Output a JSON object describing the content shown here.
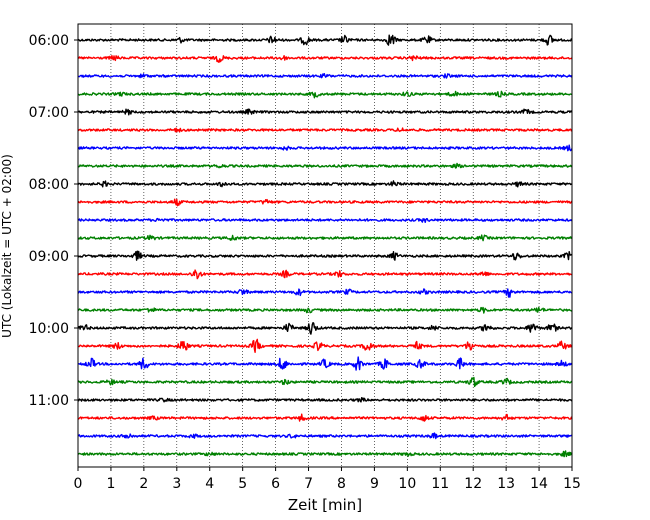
{
  "chart_data": {
    "type": "line",
    "title": "",
    "xlabel": "Zeit  [min]",
    "ylabel": "UTC (Lokalzeit = UTC + 02:00)",
    "xlim": [
      0,
      15
    ],
    "x_ticks": [
      "0",
      "1",
      "2",
      "3",
      "4",
      "5",
      "6",
      "7",
      "8",
      "9",
      "10",
      "11",
      "12",
      "13",
      "14",
      "15"
    ],
    "y_tick_labels": [
      "06:00",
      "07:00",
      "08:00",
      "09:00",
      "10:00",
      "11:00"
    ],
    "grid": "vertical-dotted",
    "trace_interval_min": 15,
    "colors": [
      "#000000",
      "#ff0000",
      "#0000ff",
      "#008000"
    ],
    "series": [
      {
        "time": "06:00",
        "color": "#000000",
        "bursts": [
          [
            5.9,
            0.5
          ],
          [
            6.9,
            0.6
          ],
          [
            8.1,
            0.5
          ],
          [
            9.5,
            0.9
          ],
          [
            10.6,
            0.5
          ],
          [
            14.3,
            0.7
          ],
          [
            3.1,
            0.3
          ]
        ]
      },
      {
        "time": "06:15",
        "color": "#ff0000",
        "bursts": [
          [
            4.3,
            0.5
          ],
          [
            1.1,
            0.3
          ],
          [
            6.2,
            0.3
          ],
          [
            10.2,
            0.3
          ]
        ]
      },
      {
        "time": "06:30",
        "color": "#0000ff",
        "bursts": [
          [
            2.0,
            0.2
          ],
          [
            7.5,
            0.2
          ],
          [
            11.2,
            0.2
          ]
        ]
      },
      {
        "time": "06:45",
        "color": "#008000",
        "bursts": [
          [
            7.2,
            0.4
          ],
          [
            10.0,
            0.3
          ],
          [
            11.4,
            0.3
          ],
          [
            12.8,
            0.3
          ],
          [
            1.3,
            0.2
          ]
        ]
      },
      {
        "time": "07:00",
        "color": "#000000",
        "bursts": [
          [
            1.5,
            0.3
          ],
          [
            5.2,
            0.3
          ],
          [
            13.6,
            0.3
          ]
        ]
      },
      {
        "time": "07:15",
        "color": "#ff0000",
        "bursts": [
          [
            3.0,
            0.2
          ],
          [
            9.8,
            0.2
          ]
        ]
      },
      {
        "time": "07:30",
        "color": "#0000ff",
        "bursts": [
          [
            6.3,
            0.2
          ],
          [
            14.9,
            0.3
          ]
        ]
      },
      {
        "time": "07:45",
        "color": "#008000",
        "bursts": [
          [
            4.3,
            0.2
          ],
          [
            11.5,
            0.2
          ]
        ]
      },
      {
        "time": "08:00",
        "color": "#000000",
        "bursts": [
          [
            0.8,
            0.3
          ],
          [
            4.4,
            0.3
          ],
          [
            9.6,
            0.3
          ],
          [
            13.4,
            0.3
          ]
        ]
      },
      {
        "time": "08:15",
        "color": "#ff0000",
        "bursts": [
          [
            3.0,
            0.4
          ],
          [
            5.7,
            0.3
          ]
        ]
      },
      {
        "time": "08:30",
        "color": "#0000ff",
        "bursts": [
          [
            2.5,
            0.2
          ],
          [
            10.5,
            0.2
          ]
        ]
      },
      {
        "time": "08:45",
        "color": "#008000",
        "bursts": [
          [
            2.2,
            0.3
          ],
          [
            4.7,
            0.3
          ],
          [
            12.3,
            0.3
          ]
        ]
      },
      {
        "time": "09:00",
        "color": "#000000",
        "bursts": [
          [
            1.8,
            0.6
          ],
          [
            9.6,
            0.5
          ],
          [
            13.3,
            0.5
          ],
          [
            14.9,
            0.5
          ]
        ]
      },
      {
        "time": "09:15",
        "color": "#ff0000",
        "bursts": [
          [
            3.6,
            0.8
          ],
          [
            6.3,
            0.4
          ],
          [
            7.9,
            0.4
          ],
          [
            12.3,
            0.3
          ]
        ]
      },
      {
        "time": "09:30",
        "color": "#0000ff",
        "bursts": [
          [
            5.0,
            0.4
          ],
          [
            6.7,
            0.4
          ],
          [
            8.2,
            0.3
          ],
          [
            10.5,
            0.3
          ],
          [
            13.1,
            0.6
          ]
        ]
      },
      {
        "time": "09:45",
        "color": "#008000",
        "bursts": [
          [
            2.2,
            0.3
          ],
          [
            7.0,
            0.3
          ],
          [
            12.3,
            0.3
          ],
          [
            14.0,
            0.3
          ]
        ]
      },
      {
        "time": "10:00",
        "color": "#000000",
        "bursts": [
          [
            7.1,
            1.0
          ],
          [
            6.4,
            0.6
          ],
          [
            12.4,
            0.6
          ],
          [
            13.8,
            0.8
          ],
          [
            14.4,
            0.6
          ],
          [
            10.8,
            0.3
          ],
          [
            0.2,
            0.4
          ]
        ]
      },
      {
        "time": "10:15",
        "color": "#ff0000",
        "bursts": [
          [
            3.2,
            0.9
          ],
          [
            5.4,
            0.9
          ],
          [
            7.3,
            0.6
          ],
          [
            8.8,
            0.8
          ],
          [
            10.3,
            0.5
          ],
          [
            11.9,
            0.7
          ],
          [
            14.7,
            0.6
          ],
          [
            1.2,
            0.4
          ]
        ]
      },
      {
        "time": "10:30",
        "color": "#0000ff",
        "bursts": [
          [
            0.4,
            0.7
          ],
          [
            2.0,
            0.8
          ],
          [
            6.2,
            0.9
          ],
          [
            7.5,
            0.6
          ],
          [
            8.5,
            0.9
          ],
          [
            9.3,
            0.7
          ],
          [
            10.4,
            0.6
          ],
          [
            11.6,
            0.7
          ],
          [
            14.7,
            0.4
          ]
        ]
      },
      {
        "time": "10:45",
        "color": "#008000",
        "bursts": [
          [
            12.0,
            0.7
          ],
          [
            13.0,
            0.4
          ],
          [
            6.3,
            0.3
          ],
          [
            1.0,
            0.3
          ]
        ]
      },
      {
        "time": "11:00",
        "color": "#000000",
        "bursts": [
          [
            2.6,
            0.2
          ],
          [
            8.6,
            0.2
          ]
        ]
      },
      {
        "time": "11:15",
        "color": "#ff0000",
        "bursts": [
          [
            6.8,
            0.4
          ],
          [
            10.5,
            0.4
          ],
          [
            13.0,
            0.4
          ],
          [
            2.3,
            0.2
          ]
        ]
      },
      {
        "time": "11:30",
        "color": "#0000ff",
        "bursts": [
          [
            1.5,
            0.4
          ],
          [
            10.8,
            0.3
          ],
          [
            3.5,
            0.2
          ],
          [
            6.5,
            0.2
          ]
        ]
      },
      {
        "time": "11:45",
        "color": "#008000",
        "bursts": [
          [
            14.8,
            0.3
          ],
          [
            4.0,
            0.2
          ],
          [
            10.0,
            0.2
          ]
        ]
      }
    ]
  }
}
